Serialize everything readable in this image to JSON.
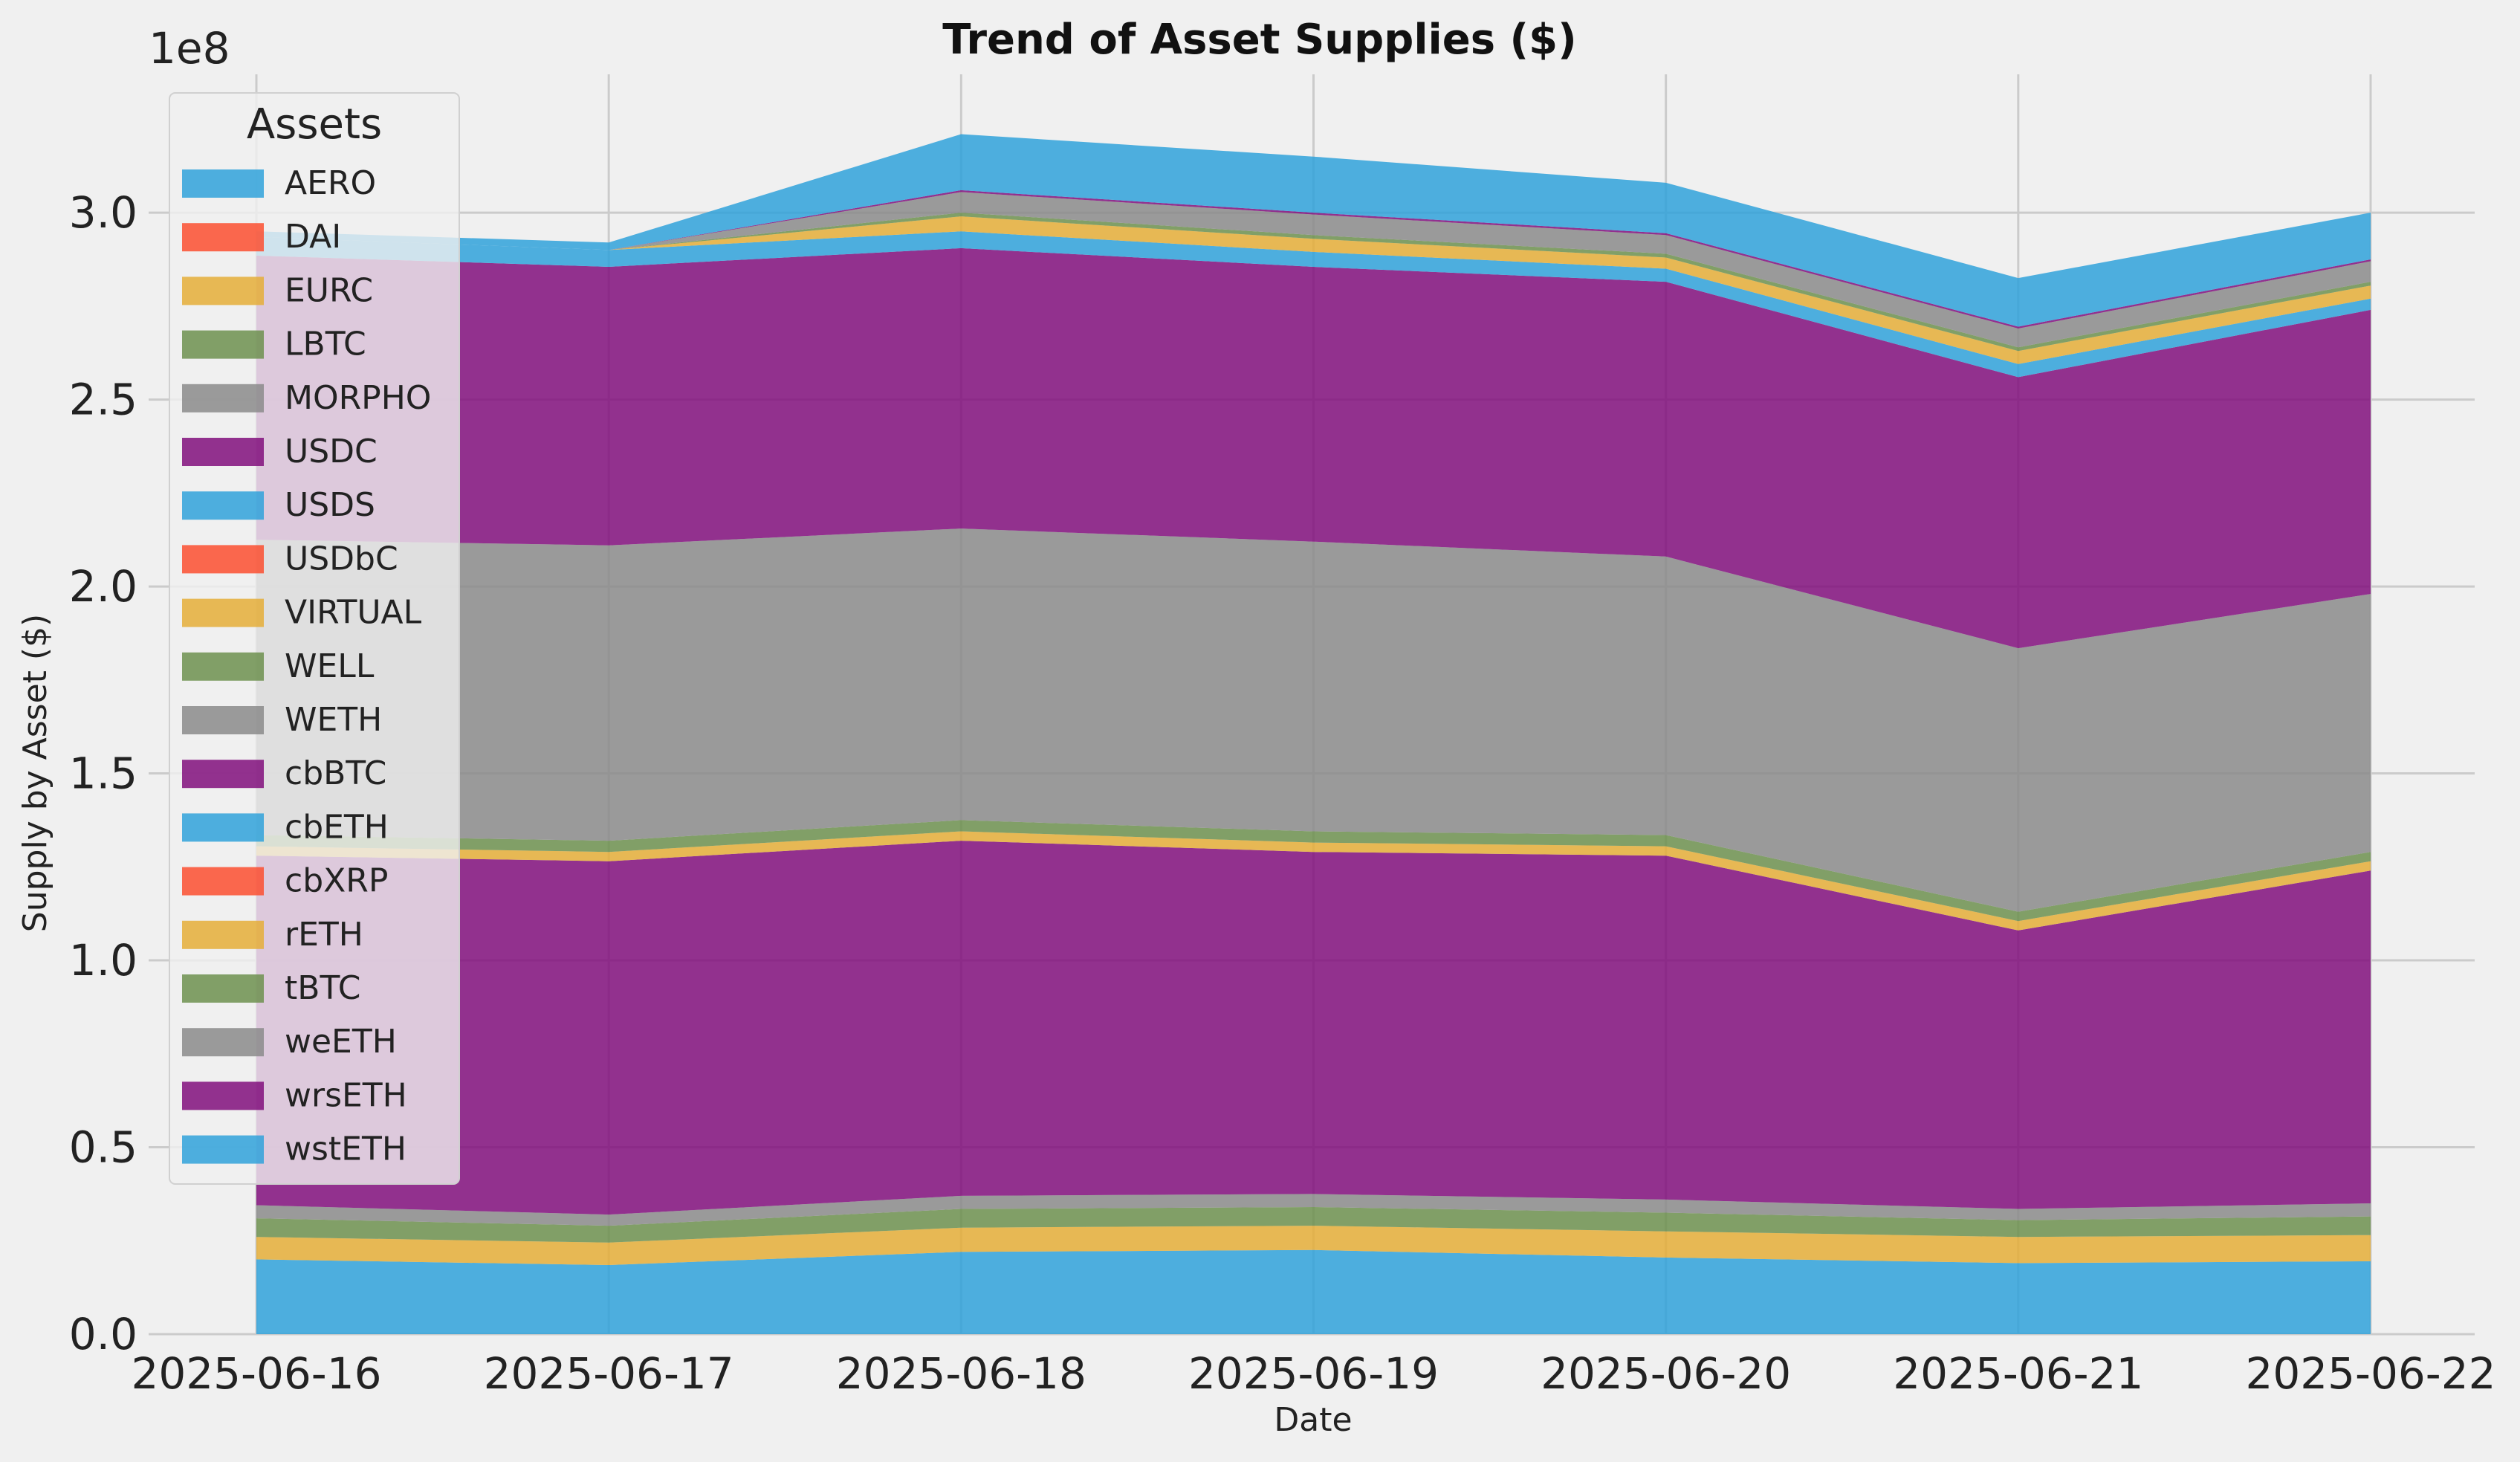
{
  "chart_data": {
    "type": "area",
    "stacked": true,
    "title": "Trend of Asset Supplies ($)",
    "xlabel": "Date",
    "ylabel": "Supply by Asset ($)",
    "y_scale_label": "1e8",
    "ylim": [
      0,
      3.37
    ],
    "yticks": [
      "0.0",
      "0.5",
      "1.0",
      "1.5",
      "2.0",
      "2.5",
      "3.0"
    ],
    "grid": true,
    "legend_title": "Assets",
    "legend_position": "upper-left",
    "categories": [
      "2025-06-16",
      "2025-06-17",
      "2025-06-18",
      "2025-06-19",
      "2025-06-20",
      "2025-06-21",
      "2025-06-22"
    ],
    "series": [
      {
        "name": "AERO",
        "color": "#30a2da",
        "values": [
          0.2,
          0.185,
          0.22,
          0.225,
          0.205,
          0.19,
          0.195
        ]
      },
      {
        "name": "DAI",
        "color": "#fc4f30",
        "values": [
          0,
          0,
          0,
          0,
          0,
          0,
          0
        ]
      },
      {
        "name": "EURC",
        "color": "#e5ae38",
        "values": [
          0.06,
          0.06,
          0.065,
          0.065,
          0.07,
          0.07,
          0.07
        ]
      },
      {
        "name": "LBTC",
        "color": "#6d904f",
        "values": [
          0.05,
          0.045,
          0.05,
          0.05,
          0.05,
          0.045,
          0.05
        ]
      },
      {
        "name": "MORPHO",
        "color": "#8b8b8b",
        "values": [
          0.035,
          0.03,
          0.035,
          0.035,
          0.035,
          0.03,
          0.035
        ]
      },
      {
        "name": "USDC",
        "color": "#810f7c",
        "values": [
          0.935,
          0.945,
          0.95,
          0.915,
          0.92,
          0.745,
          0.89
        ]
      },
      {
        "name": "USDS",
        "color": "#30a2da",
        "values": [
          0,
          0,
          0,
          0,
          0,
          0,
          0
        ]
      },
      {
        "name": "USDbC",
        "color": "#fc4f30",
        "values": [
          0,
          0,
          0,
          0,
          0,
          0,
          0
        ]
      },
      {
        "name": "VIRTUAL",
        "color": "#e5ae38",
        "values": [
          0.025,
          0.025,
          0.025,
          0.025,
          0.025,
          0.025,
          0.025
        ]
      },
      {
        "name": "WELL",
        "color": "#6d904f",
        "values": [
          0.03,
          0.03,
          0.03,
          0.03,
          0.03,
          0.025,
          0.025
        ]
      },
      {
        "name": "WETH",
        "color": "#8b8b8b",
        "values": [
          0.79,
          0.79,
          0.78,
          0.775,
          0.745,
          0.705,
          0.69
        ]
      },
      {
        "name": "cbBTC",
        "color": "#810f7c",
        "values": [
          0.76,
          0.745,
          0.75,
          0.735,
          0.735,
          0.725,
          0.76
        ]
      },
      {
        "name": "cbETH",
        "color": "#30a2da",
        "values": [
          0.05,
          0.045,
          0.045,
          0.04,
          0.035,
          0.035,
          0.03
        ]
      },
      {
        "name": "cbXRP",
        "color": "#fc4f30",
        "values": [
          0,
          0,
          0,
          0,
          0,
          0,
          0
        ]
      },
      {
        "name": "rETH",
        "color": "#e5ae38",
        "values": [
          0,
          0,
          0.04,
          0.035,
          0.03,
          0.035,
          0.035
        ]
      },
      {
        "name": "tBTC",
        "color": "#6d904f",
        "values": [
          0,
          0,
          0.01,
          0.01,
          0.01,
          0.01,
          0.01
        ]
      },
      {
        "name": "weETH",
        "color": "#8b8b8b",
        "values": [
          0,
          0,
          0.055,
          0.055,
          0.05,
          0.05,
          0.055
        ]
      },
      {
        "name": "wrsETH",
        "color": "#810f7c",
        "values": [
          0,
          0,
          0.005,
          0.005,
          0.005,
          0.005,
          0.005
        ]
      },
      {
        "name": "wstETH",
        "color": "#30a2da",
        "values": [
          0.015,
          0.02,
          0.15,
          0.15,
          0.135,
          0.13,
          0.125
        ]
      }
    ]
  }
}
